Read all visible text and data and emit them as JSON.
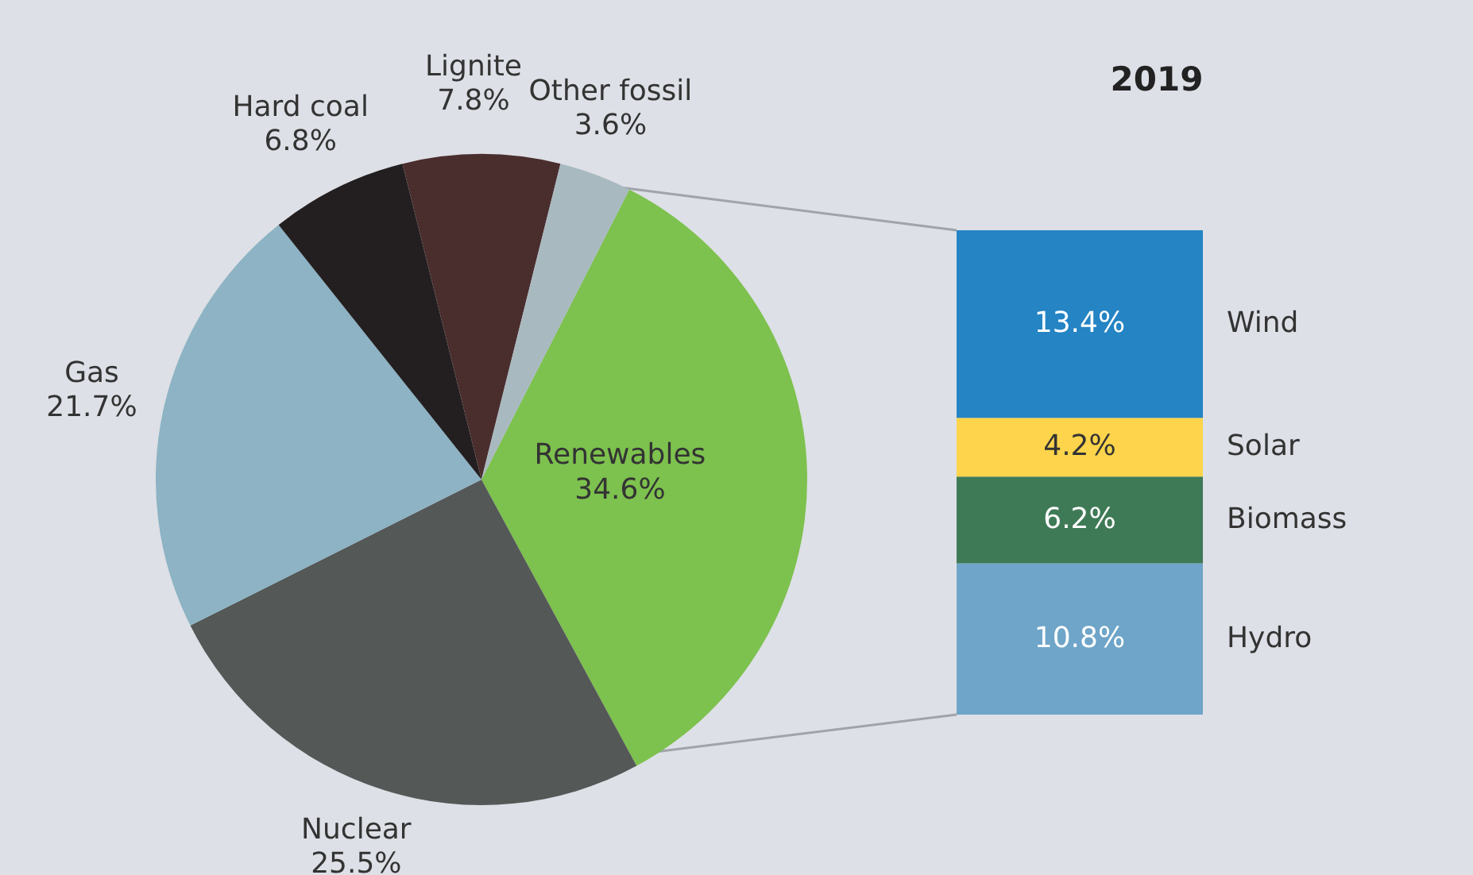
{
  "chart_data": [
    {
      "type": "pie",
      "categories": [
        "Renewables",
        "Nuclear",
        "Gas",
        "Hard coal",
        "Lignite",
        "Other fossil"
      ],
      "values": [
        34.6,
        25.5,
        21.7,
        6.8,
        7.8,
        3.6
      ],
      "colors": [
        "#7dc14e",
        "#545857",
        "#8db3c4",
        "#231f20",
        "#4a2e2e",
        "#a9b9c0"
      ],
      "value_labels": [
        "34.6%",
        "25.5%",
        "21.7%",
        "6.8%",
        "7.8%",
        "3.6%"
      ],
      "legend": false
    },
    {
      "type": "bar",
      "title": "2019",
      "stacked": true,
      "categories": [
        null
      ],
      "legend": false,
      "series": [
        {
          "name": "Hydro",
          "color": "#6ea5c8",
          "values": [
            10.8
          ],
          "value_labels": [
            "10.8%"
          ]
        },
        {
          "name": "Biomass",
          "color": "#3f7a56",
          "values": [
            6.2
          ],
          "value_labels": [
            "6.2%"
          ]
        },
        {
          "name": "Solar",
          "color": "#fdd44b",
          "values": [
            4.2
          ],
          "value_labels": [
            "4.2%"
          ]
        },
        {
          "name": "Wind",
          "color": "#2484c4",
          "values": [
            13.4
          ],
          "value_labels": [
            "13.4%"
          ]
        }
      ]
    }
  ]
}
